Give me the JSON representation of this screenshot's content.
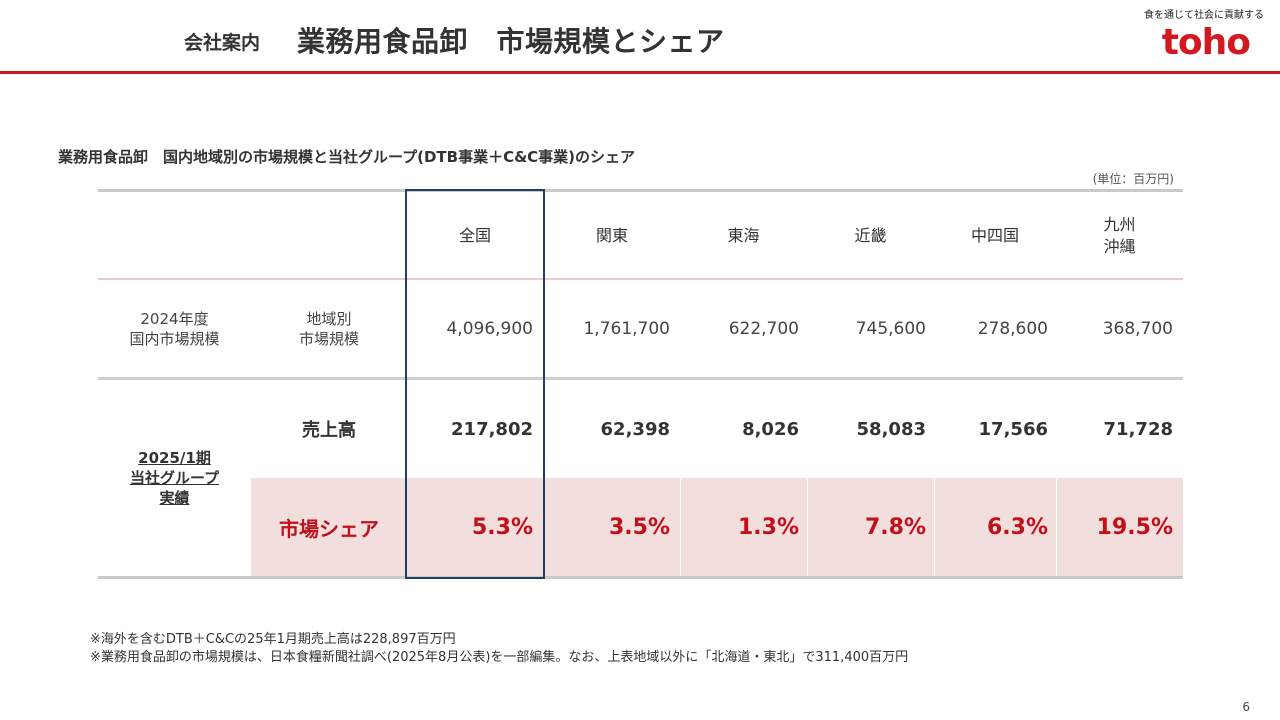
{
  "header": {
    "title_prefix": "会社案内",
    "title_main": "業務用食品卸　市場規模とシェア",
    "tagline": "食を通じて社会に貢献する",
    "logo_text": "toho",
    "accent_color": "#c8161d"
  },
  "section_title": "業務用食品卸　国内地域別の市場規模と当社グループ(DTB事業＋C&C事業)のシェア",
  "unit": "(単位：百万円)",
  "table": {
    "columns": [
      "全国",
      "関東",
      "東海",
      "近畿",
      "中四国",
      "九州\n沖縄"
    ],
    "market_row": {
      "group_label": "2024年度\n国内市場規模",
      "label": "地域別\n市場規模",
      "values": [
        "4,096,900",
        "1,761,700",
        "622,700",
        "745,600",
        "278,600",
        "368,700"
      ]
    },
    "group_label_2": "2025/1期\n当社グループ\n実績",
    "sales_row": {
      "label": "売上高",
      "values": [
        "217,802",
        "62,398",
        "8,026",
        "58,083",
        "17,566",
        "71,728"
      ]
    },
    "share_row": {
      "label": "市場シェア",
      "values": [
        "5.3%",
        "3.5%",
        "1.3%",
        "7.8%",
        "6.3%",
        "19.5%"
      ]
    }
  },
  "notes": [
    "※海外を含むDTB＋C&Cの25年1月期売上高は228,897百万円",
    "※業務用食品卸の市場規模は、日本食糧新聞社調べ(2025年8月公表)を一部編集。なお、上表地域以外に「北海道・東北」で311,400百万円"
  ],
  "page_number": "6"
}
